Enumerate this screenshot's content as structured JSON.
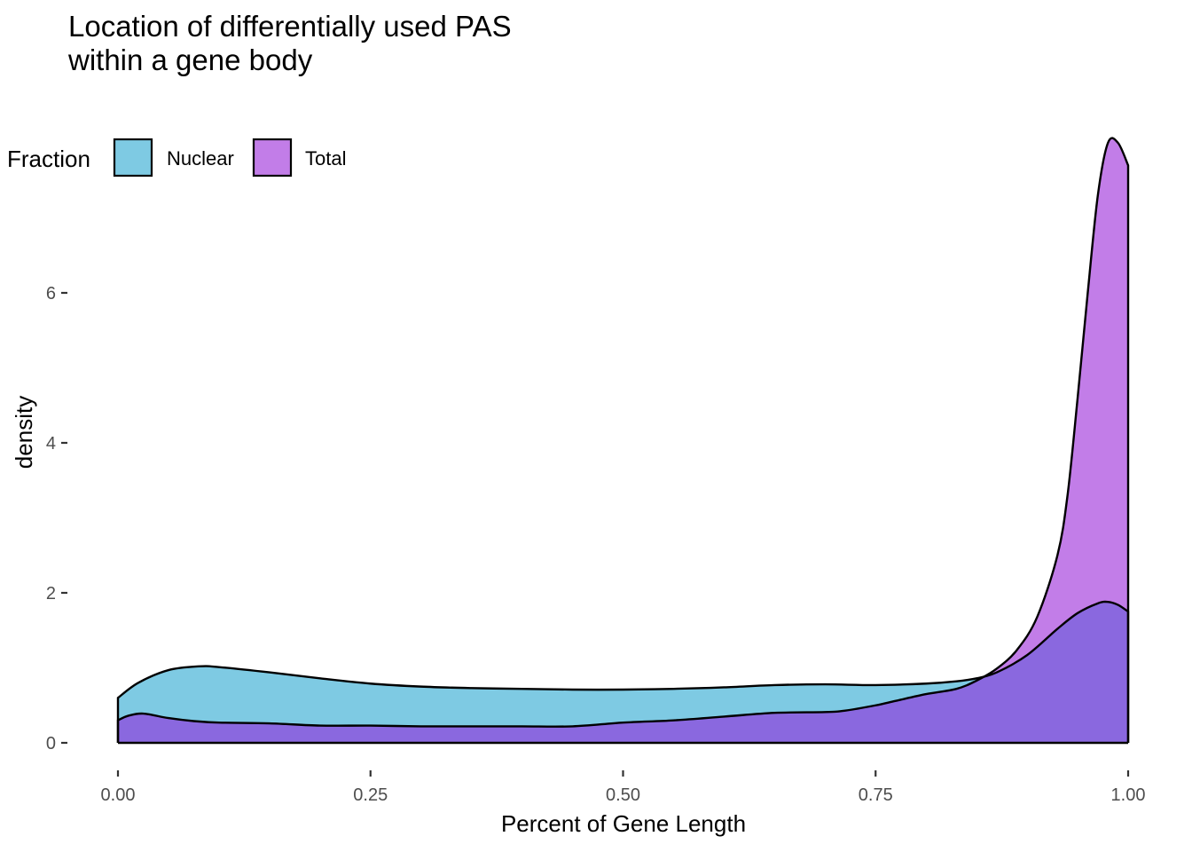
{
  "chart_data": {
    "type": "area",
    "title_lines": [
      "Location of differentially used PAS",
      "within a gene body"
    ],
    "xlabel": "Percent of Gene Length",
    "ylabel": "density",
    "xlim": [
      0,
      1
    ],
    "ylim": [
      -0.3,
      8.25
    ],
    "x_ticks": [
      0,
      0.25,
      0.5,
      0.75,
      1
    ],
    "x_tick_labels": [
      "0.00",
      "0.25",
      "0.50",
      "0.75",
      "1.00"
    ],
    "y_ticks": [
      0,
      2,
      4,
      6
    ],
    "y_tick_labels": [
      "0",
      "2",
      "4",
      "6"
    ],
    "grid": false,
    "legend": {
      "title": "Fraction",
      "position": "top-left",
      "items": [
        {
          "label": "Nuclear",
          "color": "#7ecae3"
        },
        {
          "label": "Total",
          "color": "#c27de8"
        }
      ]
    },
    "overlap_color": "#8a68df",
    "series": [
      {
        "name": "Nuclear",
        "color": "#7ecae3",
        "x": [
          0,
          0.02,
          0.05,
          0.08,
          0.1,
          0.15,
          0.2,
          0.25,
          0.3,
          0.35,
          0.4,
          0.45,
          0.5,
          0.55,
          0.6,
          0.65,
          0.7,
          0.75,
          0.8,
          0.83,
          0.85,
          0.87,
          0.9,
          0.93,
          0.95,
          0.97,
          0.98,
          0.99,
          1.0
        ],
        "values": [
          0.6,
          0.8,
          0.97,
          1.02,
          1.01,
          0.94,
          0.86,
          0.79,
          0.75,
          0.73,
          0.72,
          0.71,
          0.71,
          0.72,
          0.74,
          0.77,
          0.78,
          0.77,
          0.79,
          0.82,
          0.86,
          0.94,
          1.17,
          1.52,
          1.73,
          1.86,
          1.88,
          1.84,
          1.75
        ]
      },
      {
        "name": "Total",
        "color": "#c27de8",
        "x": [
          0,
          0.01,
          0.025,
          0.05,
          0.075,
          0.1,
          0.15,
          0.2,
          0.25,
          0.3,
          0.35,
          0.4,
          0.45,
          0.5,
          0.55,
          0.6,
          0.65,
          0.7,
          0.72,
          0.75,
          0.77,
          0.8,
          0.83,
          0.85,
          0.87,
          0.89,
          0.91,
          0.93,
          0.94,
          0.95,
          0.96,
          0.97,
          0.98,
          0.99,
          1.0
        ],
        "values": [
          0.3,
          0.36,
          0.39,
          0.33,
          0.29,
          0.27,
          0.26,
          0.23,
          0.23,
          0.22,
          0.22,
          0.22,
          0.22,
          0.27,
          0.3,
          0.35,
          0.4,
          0.41,
          0.43,
          0.5,
          0.56,
          0.65,
          0.72,
          0.83,
          0.99,
          1.24,
          1.68,
          2.5,
          3.3,
          4.6,
          6.0,
          7.3,
          8.0,
          8.0,
          7.7
        ]
      }
    ]
  }
}
